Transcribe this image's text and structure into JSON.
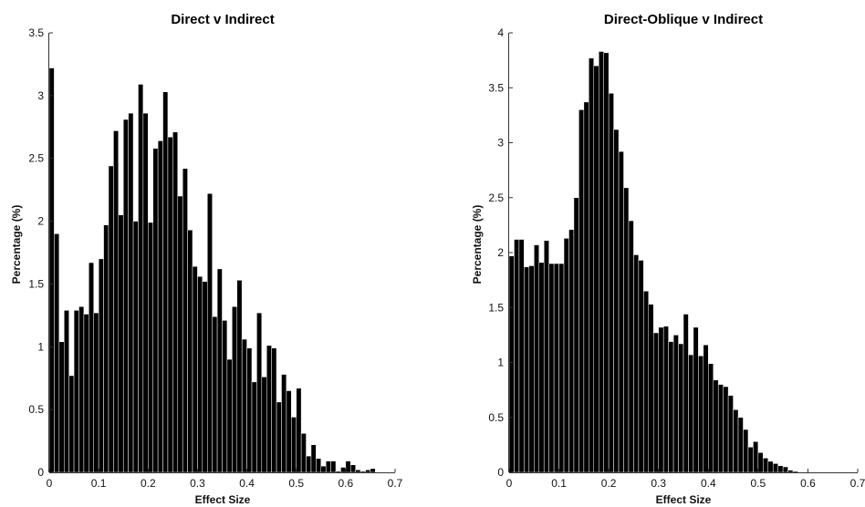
{
  "chart_data": [
    {
      "type": "bar",
      "title": "Direct v Indirect",
      "xlabel": "Effect Size",
      "ylabel": "Percentage (%)",
      "xlim": [
        0,
        0.7
      ],
      "ylim": [
        0,
        3.5
      ],
      "xticks": [
        "0",
        "0.1",
        "0.2",
        "0.3",
        "0.4",
        "0.5",
        "0.6",
        "0.7"
      ],
      "yticks": [
        "0",
        "0.5",
        "1",
        "1.5",
        "2",
        "2.5",
        "3",
        "3.5"
      ],
      "bin_width": 0.01,
      "bin_start": 0,
      "values": [
        3.22,
        1.9,
        1.04,
        1.29,
        0.77,
        1.29,
        1.32,
        1.26,
        1.67,
        1.27,
        1.7,
        1.97,
        2.44,
        2.72,
        2.05,
        2.81,
        2.86,
        2.0,
        3.09,
        2.86,
        1.99,
        2.58,
        2.64,
        3.03,
        2.67,
        2.71,
        2.2,
        2.42,
        1.93,
        1.64,
        1.56,
        1.52,
        2.22,
        1.24,
        1.62,
        1.21,
        0.9,
        1.32,
        1.53,
        1.06,
        0.99,
        0.72,
        1.27,
        0.76,
        1.01,
        0.99,
        0.56,
        0.78,
        0.65,
        0.44,
        0.67,
        0.31,
        0.13,
        0.22,
        0.11,
        0.05,
        0.09,
        0.09,
        0.01,
        0.04,
        0.09,
        0.06,
        0.02,
        0.01,
        0.02,
        0.03
      ]
    },
    {
      "type": "bar",
      "title": "Direct-Oblique v Indirect",
      "xlabel": "Effect Size",
      "ylabel": "Percentage (%)",
      "xlim": [
        0,
        0.7
      ],
      "ylim": [
        0,
        4
      ],
      "xticks": [
        "0",
        "0.1",
        "0.2",
        "0.3",
        "0.4",
        "0.5",
        "0.6",
        "0.7"
      ],
      "yticks": [
        "0",
        "0.5",
        "1",
        "1.5",
        "2",
        "2.5",
        "3",
        "3.5",
        "4"
      ],
      "bin_width": 0.01,
      "bin_start": 0,
      "values": [
        1.97,
        2.12,
        2.12,
        1.87,
        1.88,
        2.07,
        1.91,
        2.11,
        1.9,
        1.9,
        1.9,
        2.13,
        2.21,
        2.5,
        3.3,
        3.37,
        3.77,
        3.7,
        3.83,
        3.82,
        3.45,
        3.12,
        2.92,
        2.59,
        2.29,
        1.98,
        1.93,
        1.65,
        1.53,
        1.27,
        1.32,
        1.33,
        1.19,
        1.25,
        1.17,
        1.44,
        1.07,
        1.32,
        1.06,
        1.16,
        0.99,
        0.84,
        0.8,
        0.78,
        0.7,
        0.57,
        0.5,
        0.39,
        0.23,
        0.28,
        0.18,
        0.13,
        0.1,
        0.08,
        0.06,
        0.05,
        0.02,
        0.01
      ]
    }
  ]
}
